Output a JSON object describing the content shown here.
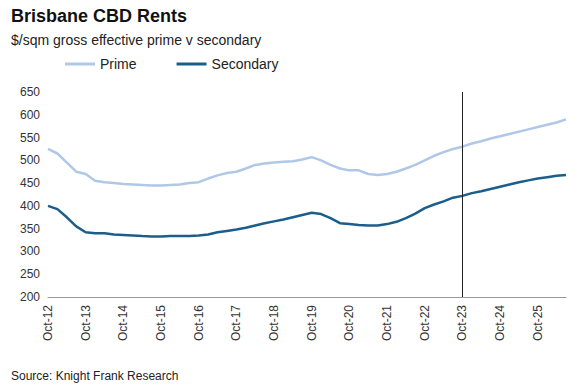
{
  "chart_data": {
    "type": "line",
    "title": "Brisbane CBD Rents",
    "subtitle": "$/sqm gross effective prime v secondary",
    "source": "Source: Knight Frank Research",
    "categories": [
      "Oct-12",
      null,
      null,
      null,
      "Oct-13",
      null,
      null,
      null,
      "Oct-14",
      null,
      null,
      null,
      "Oct-15",
      null,
      null,
      null,
      "Oct-16",
      null,
      null,
      null,
      "Oct-17",
      null,
      null,
      null,
      "Oct-18",
      null,
      null,
      null,
      "Oct-19",
      null,
      null,
      null,
      "Oct-20",
      null,
      null,
      null,
      "Oct-21",
      null,
      null,
      null,
      "Oct-22",
      null,
      null,
      null,
      "Oct-23",
      null,
      null,
      null,
      "Oct-24",
      null,
      null,
      null,
      "Oct-25",
      null,
      null,
      null
    ],
    "series": [
      {
        "name": "Prime",
        "color": "#b0c8e8",
        "values": [
          525,
          515,
          495,
          475,
          470,
          455,
          452,
          450,
          448,
          447,
          446,
          445,
          445,
          446,
          447,
          450,
          452,
          460,
          467,
          472,
          475,
          482,
          490,
          493,
          495,
          497,
          498,
          502,
          507,
          500,
          490,
          482,
          478,
          478,
          470,
          468,
          470,
          475,
          482,
          490,
          500,
          510,
          518,
          525,
          530,
          537,
          542,
          548,
          553,
          558,
          563,
          568,
          573,
          578,
          583,
          590
        ]
      },
      {
        "name": "Secondary",
        "color": "#1b5e8c",
        "values": [
          400,
          393,
          375,
          355,
          342,
          340,
          340,
          337,
          336,
          335,
          334,
          333,
          333,
          334,
          334,
          334,
          335,
          337,
          342,
          345,
          348,
          352,
          357,
          362,
          366,
          370,
          375,
          380,
          385,
          382,
          373,
          362,
          360,
          358,
          357,
          357,
          360,
          365,
          373,
          383,
          395,
          403,
          410,
          418,
          422,
          428,
          432,
          437,
          442,
          447,
          452,
          456,
          460,
          463,
          466,
          468
        ]
      }
    ],
    "vline_at": "Oct-23",
    "ylim": [
      200,
      650
    ],
    "yticks": [
      200,
      250,
      300,
      350,
      400,
      450,
      500,
      550,
      600,
      650
    ],
    "grid": false,
    "legend": "top-left"
  }
}
